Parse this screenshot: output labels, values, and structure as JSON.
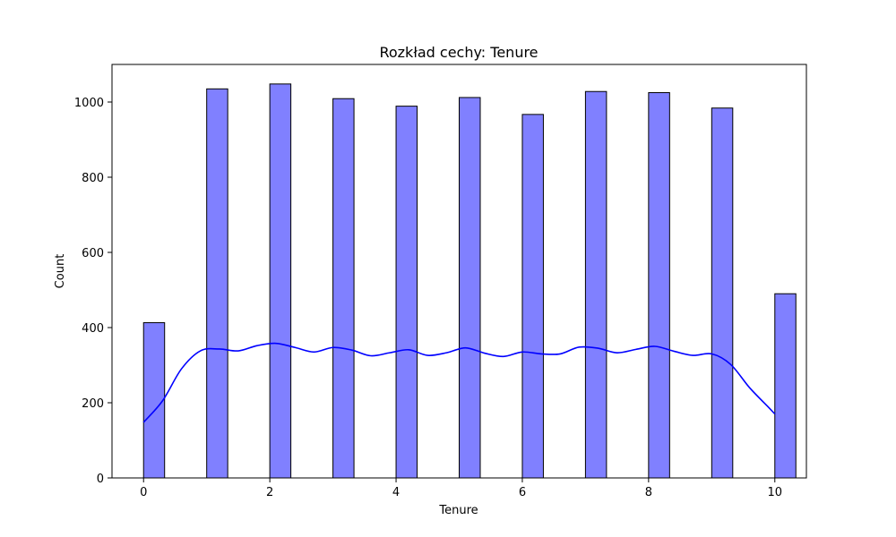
{
  "colors": {
    "bar_fill": "#8080ff",
    "bar_edge": "#000000",
    "kde_line": "#0000ff"
  },
  "chart_data": {
    "type": "bar",
    "title": "Rozkład cechy: Tenure",
    "xlabel": "Tenure",
    "ylabel": "Count",
    "xlim": [
      -0.5,
      10.5
    ],
    "ylim": [
      0,
      1100
    ],
    "xticks": [
      0,
      2,
      4,
      6,
      8,
      10
    ],
    "yticks": [
      0,
      200,
      400,
      600,
      800,
      1000
    ],
    "grid": false,
    "bin_width": 0.3333,
    "bars": [
      {
        "x": 0,
        "value": 413
      },
      {
        "x": 1,
        "value": 1035
      },
      {
        "x": 2,
        "value": 1048
      },
      {
        "x": 3,
        "value": 1009
      },
      {
        "x": 4,
        "value": 989
      },
      {
        "x": 5,
        "value": 1012
      },
      {
        "x": 6,
        "value": 967
      },
      {
        "x": 7,
        "value": 1028
      },
      {
        "x": 8,
        "value": 1025
      },
      {
        "x": 9,
        "value": 984
      },
      {
        "x": 10,
        "value": 490
      }
    ],
    "kde": {
      "x": [
        0,
        0.3,
        0.6,
        0.9,
        1.2,
        1.5,
        1.8,
        2.1,
        2.4,
        2.7,
        3.0,
        3.3,
        3.6,
        3.9,
        4.2,
        4.5,
        4.8,
        5.1,
        5.4,
        5.7,
        6.0,
        6.3,
        6.6,
        6.9,
        7.2,
        7.5,
        7.8,
        8.1,
        8.4,
        8.7,
        9.0,
        9.3,
        9.6,
        9.9,
        10.0
      ],
      "y": [
        148,
        205,
        290,
        338,
        343,
        338,
        352,
        358,
        347,
        335,
        347,
        340,
        325,
        333,
        341,
        326,
        333,
        346,
        332,
        323,
        335,
        330,
        330,
        348,
        345,
        333,
        342,
        350,
        337,
        326,
        330,
        302,
        240,
        188,
        170
      ]
    }
  }
}
